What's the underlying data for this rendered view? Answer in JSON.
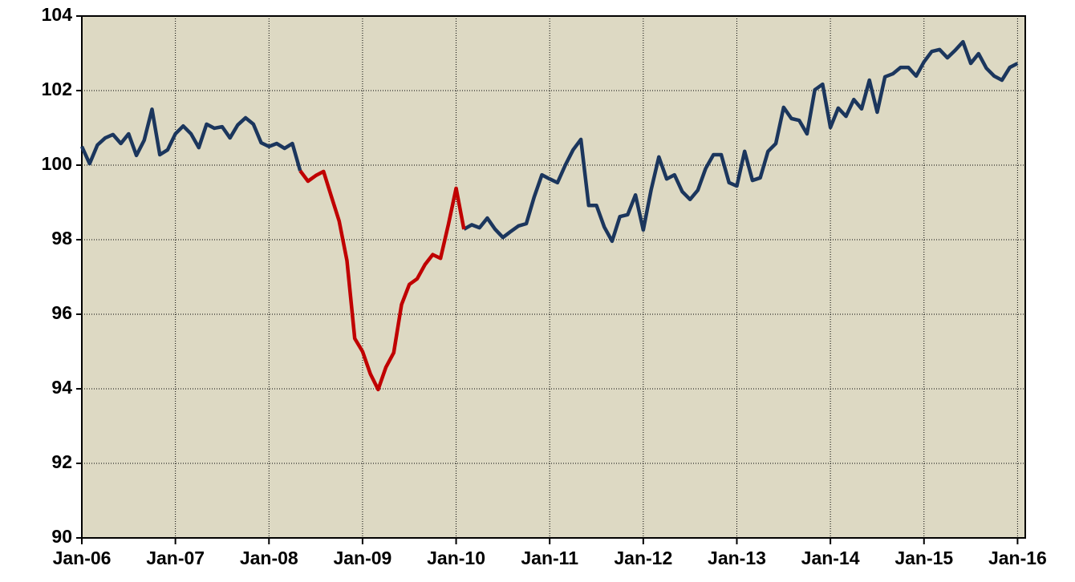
{
  "chart_data": {
    "type": "line",
    "categories": [
      "Jan-06",
      null,
      null,
      null,
      null,
      null,
      null,
      null,
      null,
      null,
      null,
      null,
      "Jan-07",
      null,
      null,
      null,
      null,
      null,
      null,
      null,
      null,
      null,
      null,
      null,
      "Jan-08",
      null,
      null,
      null,
      null,
      null,
      null,
      null,
      null,
      null,
      null,
      null,
      "Jan-09",
      null,
      null,
      null,
      null,
      null,
      null,
      null,
      null,
      null,
      null,
      null,
      "Jan-10",
      null,
      null,
      null,
      null,
      null,
      null,
      null,
      null,
      null,
      null,
      null,
      "Jan-11",
      null,
      null,
      null,
      null,
      null,
      null,
      null,
      null,
      null,
      null,
      null,
      "Jan-12",
      null,
      null,
      null,
      null,
      null,
      null,
      null,
      null,
      null,
      null,
      null,
      "Jan-13",
      null,
      null,
      null,
      null,
      null,
      null,
      null,
      null,
      null,
      null,
      null,
      "Jan-14",
      null,
      null,
      null,
      null,
      null,
      null,
      null,
      null,
      null,
      null,
      null,
      "Jan-15",
      null,
      null,
      null,
      null,
      null,
      null,
      null,
      null,
      null,
      null,
      null,
      "Jan-16"
    ],
    "series": [
      {
        "color": "#1b365d",
        "values": [
          100.5,
          100.04,
          100.54,
          100.73,
          100.82,
          100.58,
          100.84,
          100.26,
          100.67,
          101.5,
          100.28,
          100.41,
          100.84,
          101.05,
          100.84,
          100.47,
          101.1,
          100.99,
          101.03,
          100.73,
          101.08,
          101.27,
          101.1,
          100.6,
          100.5,
          100.58,
          100.45,
          100.58,
          99.85,
          null,
          null,
          null,
          null,
          null,
          null,
          null,
          null,
          null,
          null,
          null,
          null,
          null,
          null,
          null,
          null,
          null,
          null,
          null,
          null,
          98.28,
          98.4,
          98.32,
          98.58,
          98.28,
          98.06,
          98.22,
          98.37,
          98.43,
          99.14,
          99.74,
          99.63,
          99.53,
          100.0,
          100.41,
          100.69,
          98.92,
          98.92,
          98.34,
          97.96,
          98.62,
          98.67,
          99.2,
          98.26,
          99.33,
          100.22,
          99.63,
          99.74,
          99.29,
          99.08,
          99.33,
          99.91,
          100.28,
          100.28,
          99.53,
          99.44,
          100.37,
          99.59,
          99.66,
          100.37,
          100.58,
          101.55,
          101.25,
          101.2,
          100.84,
          102.02,
          102.17,
          101.01,
          101.53,
          101.31,
          101.76,
          101.51,
          102.28,
          101.42,
          102.37,
          102.45,
          102.62,
          102.62,
          102.39,
          102.77,
          103.05,
          103.1,
          102.88,
          103.08,
          103.31,
          102.73,
          102.99,
          102.6,
          102.39,
          102.28,
          102.62,
          102.73
        ]
      },
      {
        "color": "#c00000",
        "values": [
          null,
          null,
          null,
          null,
          null,
          null,
          null,
          null,
          null,
          null,
          null,
          null,
          null,
          null,
          null,
          null,
          null,
          null,
          null,
          null,
          null,
          null,
          null,
          null,
          null,
          null,
          null,
          null,
          99.85,
          99.57,
          99.72,
          99.83,
          99.16,
          98.5,
          97.44,
          95.35,
          95.0,
          94.4,
          93.98,
          94.58,
          94.97,
          96.26,
          96.8,
          96.95,
          97.33,
          97.6,
          97.5,
          98.4,
          99.38,
          98.28,
          null,
          null,
          null,
          null,
          null,
          null,
          null,
          null,
          null,
          null,
          null,
          null,
          null,
          null,
          null,
          null,
          null,
          null,
          null,
          null,
          null,
          null,
          null,
          null,
          null,
          null,
          null,
          null,
          null,
          null,
          null,
          null,
          null,
          null,
          null,
          null,
          null,
          null,
          null,
          null,
          null,
          null,
          null,
          null,
          null,
          null,
          null,
          null,
          null,
          null,
          null,
          null,
          null,
          null,
          null,
          null,
          null,
          null,
          null,
          null,
          null,
          null,
          null,
          null,
          null,
          null,
          null,
          null,
          null,
          null,
          null
        ]
      }
    ],
    "ylim": [
      90,
      104
    ],
    "yticks": [
      90,
      92,
      94,
      96,
      98,
      100,
      102,
      104
    ],
    "grid": true,
    "background": "#ddd9c3"
  }
}
